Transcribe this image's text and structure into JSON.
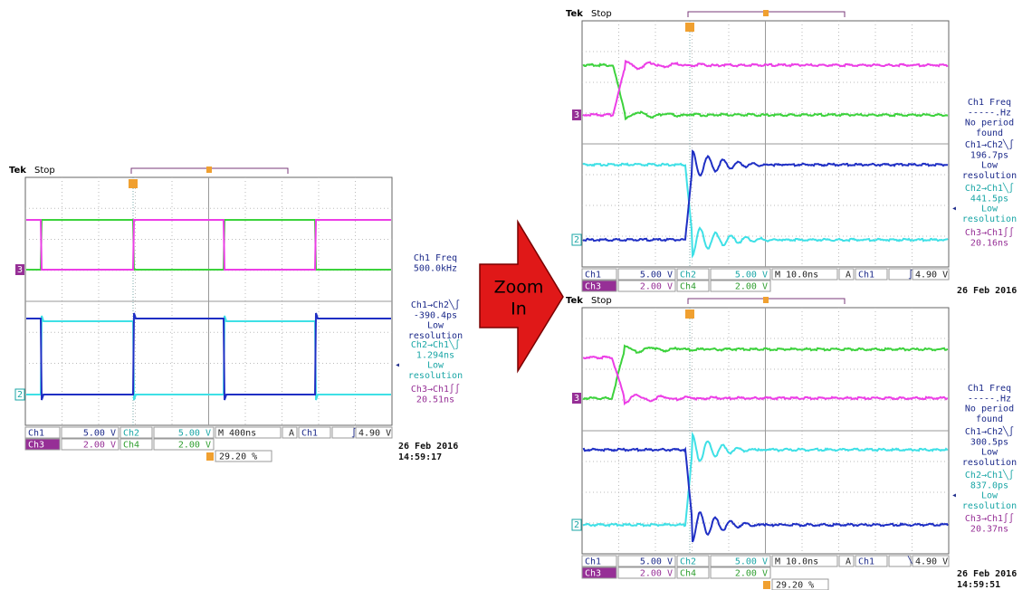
{
  "arrow": {
    "lines": [
      "Zoom",
      "In"
    ]
  },
  "scopes": [
    {
      "header": {
        "brand": "Tek",
        "status": "Stop"
      },
      "channel_markers": [
        "3",
        "2"
      ],
      "readout": {
        "row1": [
          "Ch1",
          "5.00 V",
          "Ch2",
          "5.00 V",
          "M 400ns",
          "A",
          "Ch1",
          "∫",
          "4.90 V"
        ],
        "row2": [
          "Ch3",
          "2.00 V",
          "Ch4",
          "2.00 V"
        ]
      },
      "trigger_position": "29.20 %",
      "measurements": [
        [
          "Ch1 Freq",
          "500.0kHz"
        ],
        [
          "Ch1→Ch2╲∫",
          "-390.4ps",
          "Low",
          "resolution"
        ],
        [
          "Ch2→Ch1╲∫",
          "1.294ns",
          "Low",
          "resolution"
        ],
        [
          "Ch3→Ch1∫∫",
          "20.51ns"
        ]
      ],
      "date": "26 Feb 2016",
      "time": "14:59:17"
    },
    {
      "header": {
        "brand": "Tek",
        "status": "Stop"
      },
      "channel_markers": [
        "3",
        "2"
      ],
      "readout": {
        "row1": [
          "Ch1",
          "5.00 V",
          "Ch2",
          "5.00 V",
          "M 10.0ns",
          "A",
          "Ch1",
          "∫",
          "4.90 V"
        ],
        "row2": [
          "Ch3",
          "2.00 V",
          "Ch4",
          "2.00 V"
        ]
      },
      "measurements": [
        [
          "Ch1 Freq",
          "-----.Hz",
          "No period",
          "found"
        ],
        [
          "Ch1→Ch2╲∫",
          "196.7ps",
          "Low",
          "resolution"
        ],
        [
          "Ch2→Ch1╲∫",
          "441.5ps",
          "Low",
          "resolution"
        ],
        [
          "Ch3→Ch1∫∫",
          "20.16ns"
        ]
      ],
      "date": "26 Feb 2016"
    },
    {
      "header": {
        "brand": "Tek",
        "status": "Stop"
      },
      "channel_markers": [
        "3",
        "2"
      ],
      "readout": {
        "row1": [
          "Ch1",
          "5.00 V",
          "Ch2",
          "5.00 V",
          "M 10.0ns",
          "A",
          "Ch1",
          "╲",
          "4.90 V"
        ],
        "row2": [
          "Ch3",
          "2.00 V",
          "Ch4",
          "2.00 V"
        ]
      },
      "trigger_position": "29.20 %",
      "measurements": [
        [
          "Ch1 Freq",
          "-----.Hz",
          "No period",
          "found"
        ],
        [
          "Ch1→Ch2╲∫",
          "300.5ps",
          "Low",
          "resolution"
        ],
        [
          "Ch2→Ch1╲∫",
          "837.0ps",
          "Low",
          "resolution"
        ],
        [
          "Ch3→Ch1∫∫",
          "20.37ns"
        ]
      ],
      "date": "26 Feb 2016",
      "time": "14:59:51"
    }
  ]
}
